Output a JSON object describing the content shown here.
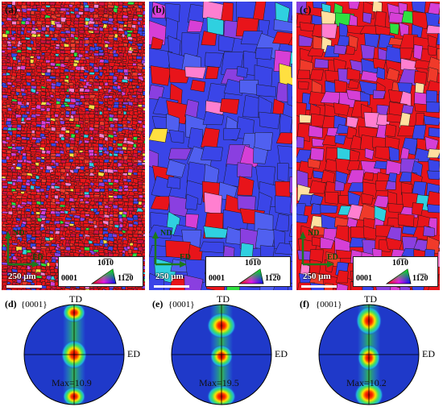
{
  "panels": [
    {
      "label": "(a)",
      "dominant": "red",
      "legend_top": "10̅1̅0",
      "legend_left": "0001",
      "legend_right": "11̅2̅0",
      "axis_nd": "ND",
      "axis_ed": "ED",
      "scale": "250 μm"
    },
    {
      "label": "(b)",
      "dominant": "blue",
      "legend_top": "10̅1̅0",
      "legend_left": "0001",
      "legend_right": "11̅2̅0",
      "axis_nd": "ND",
      "axis_ed": "ED",
      "scale": "250 μm"
    },
    {
      "label": "(c)",
      "dominant": "mixed",
      "legend_top": "10̅1̅0",
      "legend_left": "0001",
      "legend_right": "11̅2̅0",
      "axis_nd": "ND",
      "axis_ed": "ED",
      "scale": "250 μm"
    }
  ],
  "pole_figures": [
    {
      "label": "(d)",
      "plane": "{0001}",
      "td": "TD",
      "ed": "ED",
      "max": "Max=10.9"
    },
    {
      "label": "(e)",
      "plane": "{0001}",
      "td": "TD",
      "ed": "ED",
      "max": "Max=19.5"
    },
    {
      "label": "(f)",
      "plane": "{0001}",
      "td": "TD",
      "ed": "ED",
      "max": "Max=10.2"
    }
  ],
  "colors": {
    "red": "#e8141a",
    "blue": "#3a45e8",
    "magenta": "#d63fd6",
    "green": "#1c7a1c",
    "pf_bg": "#1f39c9",
    "pf_hot": "#e0140a"
  }
}
